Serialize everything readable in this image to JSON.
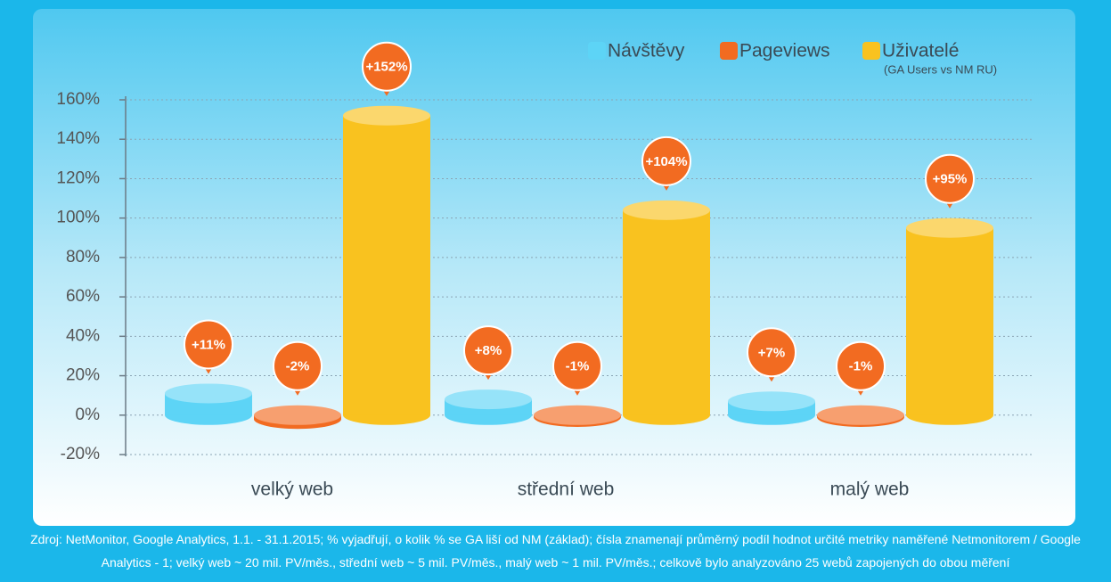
{
  "chart_data": {
    "type": "bar",
    "categories": [
      "velký web",
      "střední web",
      "malý web"
    ],
    "series": [
      {
        "name": "Návštěvy",
        "color": "#5dd4f6",
        "values": [
          11,
          8,
          7
        ],
        "value_labels": [
          "+11%",
          "+8%",
          "+7%"
        ]
      },
      {
        "name": "Pageviews",
        "color": "#f26b21",
        "values": [
          -2,
          -1,
          -1
        ],
        "value_labels": [
          "-2%",
          "-1%",
          "-1%"
        ]
      },
      {
        "name": "Uživatelé",
        "note": "(GA Users vs NM RU)",
        "color": "#f9c21f",
        "values": [
          152,
          104,
          95
        ],
        "value_labels": [
          "+152%",
          "+104%",
          "+95%"
        ]
      }
    ],
    "ylim": [
      -20,
      160
    ],
    "yticks": [
      {
        "value": -20,
        "label": "-20%"
      },
      {
        "value": 0,
        "label": "0%"
      },
      {
        "value": 20,
        "label": "20%"
      },
      {
        "value": 40,
        "label": "40%"
      },
      {
        "value": 60,
        "label": "60%"
      },
      {
        "value": 80,
        "label": "80%"
      },
      {
        "value": 100,
        "label": "100%"
      },
      {
        "value": 120,
        "label": "120%"
      },
      {
        "value": 140,
        "label": "140%"
      },
      {
        "value": 160,
        "label": "160%"
      }
    ],
    "grid": true,
    "callout_color": "#f26b21",
    "footnote": "Zdroj: NetMonitor, Google Analytics, 1.1. - 31.1.2015; % vyjadřují, o kolik % se GA liší od NM (základ); čísla znamenají průměrný podíl hodnot určité metriky naměřené Netmonitorem / Google Analytics - 1; velký web ~ 20 mil. PV/měs., střední web ~ 5 mil. PV/měs., malý web ~ 1 mil. PV/měs.; celkově bylo analyzováno 25 webů zapojených do obou měření"
  }
}
